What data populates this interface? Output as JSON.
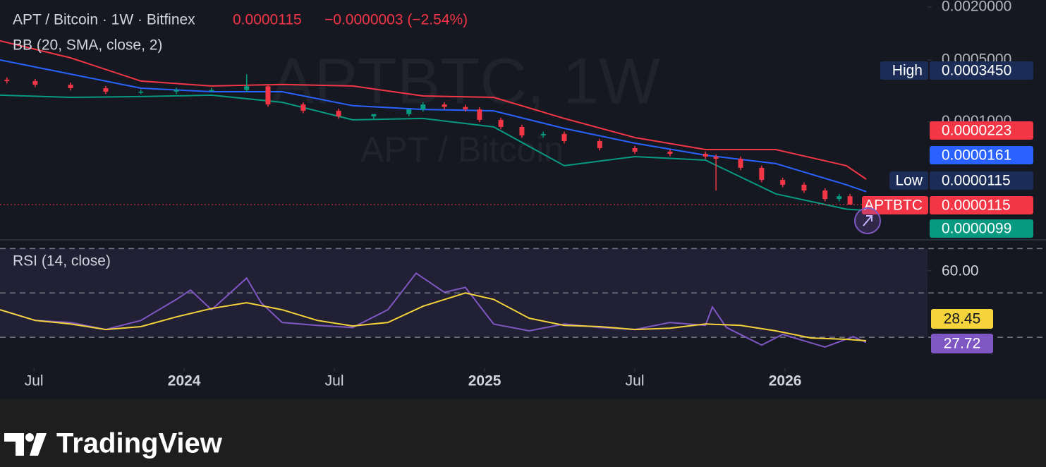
{
  "chart_data": [
    {
      "type": "candlestick",
      "title": "APT / Bitcoin · 1W · Bitfinex",
      "last": {
        "value": 1.15e-05,
        "label": "0.0000115"
      },
      "change": "−0.0000003 (−2.54%)",
      "indicator": "BB (20, SMA, close, 2)",
      "watermark": [
        "APTBTC, 1W",
        "APT / Bitcoin"
      ],
      "x": [
        2023.41,
        2023.504,
        2023.622,
        2023.739,
        2023.856,
        2023.974,
        2024.091,
        2024.208,
        2024.279,
        2024.396,
        2024.514,
        2024.631,
        2024.748,
        2024.795,
        2024.866,
        2024.936,
        2024.983,
        2025.054,
        2025.124,
        2025.195,
        2025.265,
        2025.383,
        2025.5,
        2025.617,
        2025.735,
        2025.77,
        2025.852,
        2025.922,
        2025.992,
        2026.063,
        2026.133,
        2026.18,
        2026.216
      ],
      "open": [
        0.0003,
        0.000289,
        0.000263,
        0.00024,
        0.000219,
        0.000219,
        0.000229,
        0.000229,
        0.000252,
        0.000157,
        0.000133,
        0.000115,
        0.000122,
        0.000138,
        0.000157,
        0.000147,
        0.000138,
        0.000105,
        8.73e-05,
        6.99e-05,
        7.27e-05,
        6.04e-05,
        5.02e-05,
        4.58e-05,
        4.33e-05,
        4.02e-05,
        3.8e-05,
        3e-05,
        2.19e-05,
        1.93e-05,
        1.66e-05,
        1.33e-05,
        1.43e-05
      ],
      "high": [
        0.000318,
        0.000306,
        0.000279,
        0.000254,
        0.000232,
        0.000243,
        0.000243,
        0.000345,
        0.000267,
        0.000166,
        0.000141,
        0.000122,
        0.000129,
        0.000166,
        0.000166,
        0.000156,
        0.000146,
        0.000111,
        9.25e-05,
        7.71e-05,
        7.71e-05,
        6.4e-05,
        5.32e-05,
        4.85e-05,
        4.59e-05,
        4.26e-05,
        4.03e-05,
        3.18e-05,
        2.32e-05,
        2.05e-05,
        1.76e-05,
        1.52e-05,
        1.52e-05
      ],
      "low": [
        0.000272,
        0.000247,
        0.000226,
        0.000206,
        0.000206,
        0.000206,
        0.000215,
        0.000215,
        0.000148,
        0.000125,
        0.000108,
        0.000108,
        0.000115,
        0.00013,
        0.000138,
        0.00013,
        9.9e-05,
        8.21e-05,
        6.57e-05,
        6.57e-05,
        5.68e-05,
        4.72e-05,
        4.31e-05,
        4.07e-05,
        3.78e-05,
        1.66e-05,
        2.82e-05,
        2.06e-05,
        1.81e-05,
        1.56e-05,
        1.25e-05,
        1.25e-05,
        1.15e-05
      ],
      "close": [
        0.000289,
        0.000263,
        0.00024,
        0.000219,
        0.000219,
        0.000229,
        0.000229,
        0.000252,
        0.000157,
        0.000133,
        0.000115,
        0.000122,
        0.000138,
        0.000157,
        0.000147,
        0.000138,
        0.000105,
        8.73e-05,
        6.99e-05,
        7.27e-05,
        6.04e-05,
        5.02e-05,
        4.58e-05,
        4.33e-05,
        4.02e-05,
        3.8e-05,
        3e-05,
        2.19e-05,
        1.93e-05,
        1.66e-05,
        1.33e-05,
        1.43e-05,
        1.15e-05
      ],
      "up_color": "#089981",
      "down_color": "#f23645",
      "bands": [
        {
          "color": "#f23645",
          "x": [
            2023.387,
            2023.622,
            2023.856,
            2024.091,
            2024.326,
            2024.561,
            2024.795,
            2025.03,
            2025.265,
            2025.5,
            2025.735,
            2025.969,
            2026.204,
            2026.27
          ],
          "values": [
            0.000826,
            0.00053,
            0.000289,
            0.000254,
            0.000264,
            0.000254,
            0.000196,
            0.000189,
            0.000109,
            6.62e-05,
            4.84e-05,
            4.84e-05,
            3.17e-05,
            2.23e-05
          ]
        },
        {
          "color": "#2962ff",
          "x": [
            2023.387,
            2023.622,
            2023.856,
            2024.091,
            2024.326,
            2024.561,
            2024.795,
            2025.03,
            2025.265,
            2025.5,
            2025.735,
            2025.969,
            2026.204,
            2026.27
          ],
          "values": [
            0.000502,
            0.000347,
            0.00024,
            0.000219,
            0.000219,
            0.000152,
            0.000138,
            0.000133,
            8.41e-05,
            5.71e-05,
            4.17e-05,
            3.35e-05,
            1.93e-05,
            1.61e-05
          ]
        },
        {
          "color": "#089981",
          "x": [
            2023.387,
            2023.622,
            2023.856,
            2024.091,
            2024.326,
            2024.561,
            2024.795,
            2025.03,
            2025.265,
            2025.5,
            2025.735,
            2025.969,
            2026.204,
            2026.27
          ],
          "values": [
            0.0002,
            0.000189,
            0.000193,
            0.0002,
            0.000166,
            0.000105,
            0.000109,
            8.73e-05,
            3.17e-05,
            4.02e-05,
            3.67e-05,
            1.52e-05,
            1.02e-05,
            9.9e-06
          ]
        }
      ],
      "log_scale": true,
      "ylim": [
        4.75e-06,
        0.0024
      ],
      "yticks": [
        {
          "value": 0.002,
          "label": "0.0020000"
        },
        {
          "value": 0.0005,
          "label": "0.0005000"
        },
        {
          "value": 0.0001,
          "label": "0.0001000"
        }
      ],
      "xlim": [
        2023.387,
        2026.474
      ],
      "xticks": [
        {
          "value": 2023.5,
          "label": "Jul"
        },
        2024,
        {
          "value": 2024.5,
          "label": "Jul"
        },
        2025,
        {
          "value": 2025.5,
          "label": "Jul"
        },
        2026
      ],
      "price_labels": [
        {
          "label": "High",
          "value": 0.000345,
          "value_label": "0.0003450",
          "color": "#1b2d57"
        },
        {
          "value": 2.23e-05,
          "value_label": "0.0000223",
          "color": "#f23645"
        },
        {
          "value": 1.61e-05,
          "value_label": "0.0000161",
          "color": "#2962ff"
        },
        {
          "label": "Low",
          "value": 1.15e-05,
          "value_label": "0.0000115",
          "color": "#1b2d57"
        },
        {
          "label": "APTBTC",
          "value": 1.15e-05,
          "value_label": "0.0000115",
          "color": "#f23645"
        },
        {
          "value": 9.9e-06,
          "value_label": "0.0000099",
          "color": "#089981"
        }
      ]
    },
    {
      "type": "line",
      "title": "RSI (14, close)",
      "series": [
        {
          "color": "#7e57c2",
          "x": [
            2023.387,
            2023.504,
            2023.622,
            2023.739,
            2023.856,
            2023.974,
            2024.021,
            2024.091,
            2024.208,
            2024.256,
            2024.326,
            2024.443,
            2024.561,
            2024.678,
            2024.772,
            2024.866,
            2024.936,
            2025.03,
            2025.148,
            2025.265,
            2025.383,
            2025.5,
            2025.617,
            2025.735,
            2025.758,
            2025.805,
            2025.922,
            2025.992,
            2026.133,
            2026.227,
            2026.27
          ],
          "values": [
            42.4,
            37.6,
            36.7,
            33.5,
            37.6,
            47.1,
            51.3,
            42.4,
            56.7,
            45.6,
            36.7,
            35.4,
            34.4,
            42.4,
            58.9,
            50.3,
            52.5,
            36.0,
            32.9,
            36.0,
            34.4,
            33.5,
            36.7,
            35.4,
            43.7,
            34.4,
            26.5,
            31.3,
            25.6,
            30.3,
            27.72
          ]
        },
        {
          "color": "#f5d33a",
          "x": [
            2023.387,
            2023.504,
            2023.622,
            2023.739,
            2023.856,
            2023.974,
            2024.091,
            2024.208,
            2024.326,
            2024.443,
            2024.561,
            2024.678,
            2024.795,
            2024.936,
            2025.03,
            2025.148,
            2025.265,
            2025.383,
            2025.5,
            2025.617,
            2025.735,
            2025.852,
            2025.969,
            2026.087,
            2026.204,
            2026.27
          ],
          "values": [
            42.4,
            37.6,
            36.0,
            33.5,
            34.8,
            39.2,
            43.0,
            45.6,
            42.4,
            37.6,
            35.1,
            36.7,
            44.0,
            50.0,
            47.1,
            38.6,
            35.4,
            34.8,
            33.5,
            34.1,
            36.0,
            35.4,
            32.9,
            29.7,
            29.1,
            28.45
          ]
        }
      ],
      "ylim": [
        17,
        73.3
      ],
      "yticks": [
        {
          "value": 60,
          "label": "60.00"
        }
      ],
      "hlines": [
        70,
        50,
        30
      ],
      "xlim": [
        2023.387,
        2026.474
      ],
      "price_labels": [
        {
          "value": 28.45,
          "value_label": "28.45",
          "color": "#f5d33a"
        },
        {
          "value": 27.72,
          "value_label": "27.72",
          "color": "#7e57c2"
        }
      ]
    }
  ],
  "brand": "TradingView"
}
